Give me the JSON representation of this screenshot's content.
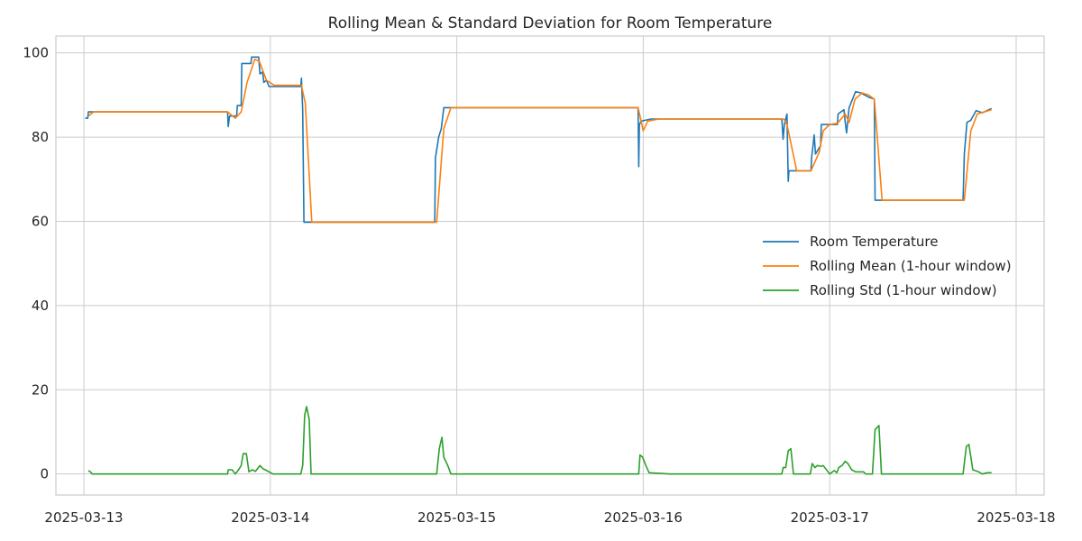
{
  "chart_data": {
    "type": "line",
    "title": "Rolling Mean & Standard Deviation for Room Temperature",
    "xlabel": "",
    "ylabel": "",
    "x_ticks": [
      "2025-03-13",
      "2025-03-14",
      "2025-03-15",
      "2025-03-16",
      "2025-03-17",
      "2025-03-18"
    ],
    "y_ticks": [
      0,
      20,
      40,
      60,
      80,
      100
    ],
    "xlim": [
      "2025-03-12 20:24",
      "2025-03-18 03:36"
    ],
    "ylim": [
      -5,
      104
    ],
    "grid": true,
    "legend_position": "center-right",
    "series": [
      {
        "name": "Room Temperature",
        "color": "#1f77b4",
        "points": [
          [
            "2025-03-13 00:10",
            84.5
          ],
          [
            "2025-03-13 00:30",
            84.5
          ],
          [
            "2025-03-13 00:35",
            86.0
          ],
          [
            "2025-03-13 18:30",
            86.0
          ],
          [
            "2025-03-13 18:35",
            82.5
          ],
          [
            "2025-03-13 18:45",
            85.0
          ],
          [
            "2025-03-13 19:40",
            85.0
          ],
          [
            "2025-03-13 19:45",
            87.5
          ],
          [
            "2025-03-13 20:15",
            87.5
          ],
          [
            "2025-03-13 20:20",
            97.5
          ],
          [
            "2025-03-13 21:30",
            97.5
          ],
          [
            "2025-03-13 21:35",
            99.0
          ],
          [
            "2025-03-13 22:30",
            99.0
          ],
          [
            "2025-03-13 22:40",
            95.0
          ],
          [
            "2025-03-13 23:00",
            95.5
          ],
          [
            "2025-03-13 23:10",
            93.0
          ],
          [
            "2025-03-13 23:30",
            93.5
          ],
          [
            "2025-03-13 23:50",
            92.0
          ],
          [
            "2025-03-14 03:55",
            92.0
          ],
          [
            "2025-03-14 04:00",
            94.0
          ],
          [
            "2025-03-14 04:10",
            86.5
          ],
          [
            "2025-03-14 04:20",
            59.8
          ],
          [
            "2025-03-14 21:10",
            59.8
          ],
          [
            "2025-03-14 21:15",
            75.0
          ],
          [
            "2025-03-14 21:40",
            80.0
          ],
          [
            "2025-03-14 22:00",
            82.0
          ],
          [
            "2025-03-14 22:20",
            87.0
          ],
          [
            "2025-03-15 23:20",
            87.0
          ],
          [
            "2025-03-15 23:25",
            73.0
          ],
          [
            "2025-03-15 23:30",
            83.0
          ],
          [
            "2025-03-15 23:45",
            83.8
          ],
          [
            "2025-03-16 01:00",
            84.3
          ],
          [
            "2025-03-16 17:50",
            84.3
          ],
          [
            "2025-03-16 18:00",
            79.5
          ],
          [
            "2025-03-16 18:10",
            83.0
          ],
          [
            "2025-03-16 18:30",
            85.5
          ],
          [
            "2025-03-16 18:40",
            69.5
          ],
          [
            "2025-03-16 18:45",
            72.0
          ],
          [
            "2025-03-16 21:35",
            72.0
          ],
          [
            "2025-03-16 21:40",
            75.0
          ],
          [
            "2025-03-16 22:00",
            80.5
          ],
          [
            "2025-03-16 22:10",
            76.0
          ],
          [
            "2025-03-16 22:50",
            78.0
          ],
          [
            "2025-03-16 22:55",
            83.0
          ],
          [
            "2025-03-17 01:00",
            83.0
          ],
          [
            "2025-03-17 01:05",
            85.5
          ],
          [
            "2025-03-17 01:50",
            86.5
          ],
          [
            "2025-03-17 02:00",
            83.5
          ],
          [
            "2025-03-17 02:10",
            81.0
          ],
          [
            "2025-03-17 02:30",
            87.0
          ],
          [
            "2025-03-17 03:20",
            90.8
          ],
          [
            "2025-03-17 04:00",
            90.5
          ],
          [
            "2025-03-17 05:00",
            89.5
          ],
          [
            "2025-03-17 05:45",
            89.0
          ],
          [
            "2025-03-17 05:50",
            65.0
          ],
          [
            "2025-03-17 17:10",
            65.0
          ],
          [
            "2025-03-17 17:20",
            76.0
          ],
          [
            "2025-03-17 17:40",
            83.5
          ],
          [
            "2025-03-17 18:10",
            84.0
          ],
          [
            "2025-03-17 18:50",
            86.3
          ],
          [
            "2025-03-17 19:40",
            85.8
          ],
          [
            "2025-03-17 20:50",
            86.8
          ]
        ]
      },
      {
        "name": "Rolling Mean (1-hour window)",
        "color": "#ff7f0e",
        "points": [
          [
            "2025-03-13 00:35",
            85.0
          ],
          [
            "2025-03-13 01:15",
            86.0
          ],
          [
            "2025-03-13 18:30",
            86.0
          ],
          [
            "2025-03-13 19:30",
            84.5
          ],
          [
            "2025-03-13 20:15",
            86.0
          ],
          [
            "2025-03-13 21:00",
            93.0
          ],
          [
            "2025-03-13 22:00",
            98.5
          ],
          [
            "2025-03-13 22:35",
            98.0
          ],
          [
            "2025-03-13 23:30",
            93.5
          ],
          [
            "2025-03-14 00:30",
            92.3
          ],
          [
            "2025-03-14 04:00",
            92.3
          ],
          [
            "2025-03-14 04:30",
            88.0
          ],
          [
            "2025-03-14 05:20",
            59.8
          ],
          [
            "2025-03-14 21:25",
            59.8
          ],
          [
            "2025-03-14 22:20",
            82.0
          ],
          [
            "2025-03-14 23:15",
            87.0
          ],
          [
            "2025-03-15 23:20",
            87.0
          ],
          [
            "2025-03-16 00:00",
            81.5
          ],
          [
            "2025-03-16 00:35",
            83.8
          ],
          [
            "2025-03-16 02:00",
            84.3
          ],
          [
            "2025-03-16 18:05",
            84.3
          ],
          [
            "2025-03-16 18:30",
            83.0
          ],
          [
            "2025-03-16 19:45",
            72.0
          ],
          [
            "2025-03-16 21:35",
            72.0
          ],
          [
            "2025-03-16 22:40",
            76.5
          ],
          [
            "2025-03-16 23:10",
            81.5
          ],
          [
            "2025-03-17 00:00",
            83.0
          ],
          [
            "2025-03-17 01:00",
            83.3
          ],
          [
            "2025-03-17 02:00",
            85.5
          ],
          [
            "2025-03-17 02:30",
            83.5
          ],
          [
            "2025-03-17 03:15",
            89.0
          ],
          [
            "2025-03-17 04:10",
            90.5
          ],
          [
            "2025-03-17 05:00",
            90.0
          ],
          [
            "2025-03-17 05:45",
            89.0
          ],
          [
            "2025-03-17 06:45",
            65.0
          ],
          [
            "2025-03-17 17:20",
            65.0
          ],
          [
            "2025-03-17 18:10",
            81.5
          ],
          [
            "2025-03-17 19:00",
            85.5
          ],
          [
            "2025-03-17 20:50",
            86.5
          ]
        ]
      },
      {
        "name": "Rolling Std (1-hour window)",
        "color": "#2ca02c",
        "points": [
          [
            "2025-03-13 00:35",
            0.8
          ],
          [
            "2025-03-13 00:50",
            0.5
          ],
          [
            "2025-03-13 01:05",
            0.0
          ],
          [
            "2025-03-13 18:30",
            0.0
          ],
          [
            "2025-03-13 18:35",
            1.0
          ],
          [
            "2025-03-13 19:05",
            1.0
          ],
          [
            "2025-03-13 19:30",
            0.0
          ],
          [
            "2025-03-13 19:55",
            1.0
          ],
          [
            "2025-03-13 20:15",
            2.0
          ],
          [
            "2025-03-13 20:30",
            4.8
          ],
          [
            "2025-03-13 20:55",
            4.8
          ],
          [
            "2025-03-13 21:15",
            0.5
          ],
          [
            "2025-03-13 21:40",
            1.0
          ],
          [
            "2025-03-13 22:05",
            0.6
          ],
          [
            "2025-03-13 22:40",
            2.0
          ],
          [
            "2025-03-13 23:05",
            1.2
          ],
          [
            "2025-03-13 23:20",
            1.0
          ],
          [
            "2025-03-14 00:20",
            0.0
          ],
          [
            "2025-03-14 03:55",
            0.0
          ],
          [
            "2025-03-14 04:10",
            2.0
          ],
          [
            "2025-03-14 04:25",
            14.0
          ],
          [
            "2025-03-14 04:40",
            16.0
          ],
          [
            "2025-03-14 05:00",
            13.0
          ],
          [
            "2025-03-14 05:15",
            0.0
          ],
          [
            "2025-03-14 21:25",
            0.0
          ],
          [
            "2025-03-14 21:45",
            6.0
          ],
          [
            "2025-03-14 22:05",
            8.7
          ],
          [
            "2025-03-14 22:20",
            4.0
          ],
          [
            "2025-03-14 22:50",
            2.0
          ],
          [
            "2025-03-14 23:15",
            0.0
          ],
          [
            "2025-03-15 23:25",
            0.0
          ],
          [
            "2025-03-15 23:35",
            4.5
          ],
          [
            "2025-03-15 23:55",
            4.0
          ],
          [
            "2025-03-16 00:20",
            2.0
          ],
          [
            "2025-03-16 00:45",
            0.3
          ],
          [
            "2025-03-16 03:30",
            0.0
          ],
          [
            "2025-03-16 17:50",
            0.0
          ],
          [
            "2025-03-16 18:00",
            1.5
          ],
          [
            "2025-03-16 18:20",
            1.5
          ],
          [
            "2025-03-16 18:40",
            5.5
          ],
          [
            "2025-03-16 19:00",
            6.0
          ],
          [
            "2025-03-16 19:20",
            0.0
          ],
          [
            "2025-03-16 21:30",
            0.0
          ],
          [
            "2025-03-16 21:45",
            2.5
          ],
          [
            "2025-03-16 22:05",
            1.5
          ],
          [
            "2025-03-16 22:25",
            2.0
          ],
          [
            "2025-03-16 22:55",
            1.8
          ],
          [
            "2025-03-16 23:10",
            2.0
          ],
          [
            "2025-03-17 00:00",
            0.0
          ],
          [
            "2025-03-17 00:35",
            0.8
          ],
          [
            "2025-03-17 00:55",
            0.3
          ],
          [
            "2025-03-17 01:10",
            1.5
          ],
          [
            "2025-03-17 01:35",
            2.0
          ],
          [
            "2025-03-17 02:00",
            3.0
          ],
          [
            "2025-03-17 02:20",
            2.5
          ],
          [
            "2025-03-17 02:50",
            1.0
          ],
          [
            "2025-03-17 03:20",
            0.5
          ],
          [
            "2025-03-17 04:20",
            0.5
          ],
          [
            "2025-03-17 04:40",
            0.0
          ],
          [
            "2025-03-17 05:30",
            0.0
          ],
          [
            "2025-03-17 05:50",
            10.5
          ],
          [
            "2025-03-17 06:20",
            11.5
          ],
          [
            "2025-03-17 06:40",
            0.0
          ],
          [
            "2025-03-17 17:10",
            0.0
          ],
          [
            "2025-03-17 17:35",
            6.5
          ],
          [
            "2025-03-17 17:55",
            7.0
          ],
          [
            "2025-03-17 18:25",
            1.0
          ],
          [
            "2025-03-17 19:10",
            0.5
          ],
          [
            "2025-03-17 19:40",
            0.0
          ],
          [
            "2025-03-17 20:15",
            0.3
          ],
          [
            "2025-03-17 20:50",
            0.3
          ]
        ]
      }
    ]
  }
}
